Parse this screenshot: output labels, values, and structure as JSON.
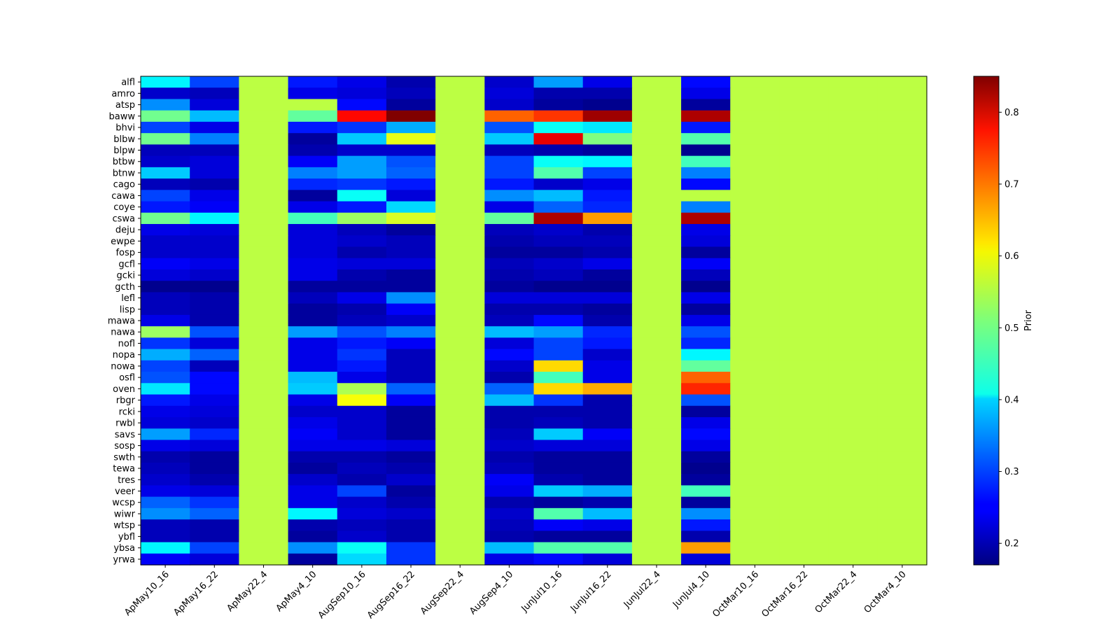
{
  "chart_data": {
    "type": "heatmap",
    "title": "",
    "xlabel": "",
    "ylabel": "",
    "colormap": "jet",
    "colorbar": {
      "label": "Prior",
      "vmin": 0.17,
      "vmax": 0.85,
      "ticks": [
        0.2,
        0.3,
        0.4,
        0.5,
        0.6,
        0.7,
        0.8
      ],
      "tick_labels": [
        "0.2",
        "0.3",
        "0.4",
        "0.5",
        "0.6",
        "0.7",
        "0.8"
      ]
    },
    "x_categories": [
      "ApMay10_16",
      "ApMay16_22",
      "ApMay22_4",
      "ApMay4_10",
      "AugSep10_16",
      "AugSep16_22",
      "AugSep22_4",
      "AugSep4_10",
      "JunJul10_16",
      "JunJul16_22",
      "JunJul22_4",
      "JunJul4_10",
      "OctMar10_16",
      "OctMar16_22",
      "OctMar22_4",
      "OctMar4_10"
    ],
    "y_categories": [
      "alfl",
      "amro",
      "atsp",
      "baww",
      "bhvi",
      "blbw",
      "blpw",
      "btbw",
      "btnw",
      "cago",
      "cawa",
      "coye",
      "cswa",
      "deju",
      "ewpe",
      "fosp",
      "gcfl",
      "gcki",
      "gcth",
      "lefl",
      "lisp",
      "mawa",
      "nawa",
      "nofl",
      "nopa",
      "nowa",
      "osfl",
      "oven",
      "rbgr",
      "rcki",
      "rwbl",
      "savs",
      "sosp",
      "swth",
      "tewa",
      "tres",
      "veer",
      "wcsp",
      "wiwr",
      "wtsp",
      "ybfl",
      "ybsa",
      "yrwa"
    ],
    "values": [
      [
        0.42,
        0.3,
        0.55,
        0.27,
        0.24,
        0.2,
        0.55,
        0.22,
        0.36,
        0.24,
        0.55,
        0.26,
        0.55,
        0.55,
        0.55,
        0.55
      ],
      [
        0.22,
        0.21,
        0.55,
        0.24,
        0.23,
        0.21,
        0.55,
        0.23,
        0.2,
        0.2,
        0.55,
        0.24,
        0.55,
        0.55,
        0.55,
        0.55
      ],
      [
        0.35,
        0.23,
        0.55,
        0.55,
        0.26,
        0.19,
        0.55,
        0.22,
        0.19,
        0.18,
        0.55,
        0.19,
        0.55,
        0.55,
        0.55,
        0.55
      ],
      [
        0.5,
        0.38,
        0.55,
        0.49,
        0.76,
        0.85,
        0.55,
        0.7,
        0.73,
        0.83,
        0.55,
        0.82,
        0.55,
        0.55,
        0.55,
        0.55
      ],
      [
        0.3,
        0.24,
        0.55,
        0.27,
        0.29,
        0.37,
        0.55,
        0.31,
        0.43,
        0.41,
        0.55,
        0.27,
        0.55,
        0.55,
        0.55,
        0.55
      ],
      [
        0.5,
        0.34,
        0.55,
        0.19,
        0.39,
        0.58,
        0.55,
        0.39,
        0.78,
        0.51,
        0.55,
        0.48,
        0.55,
        0.55,
        0.55,
        0.55
      ],
      [
        0.21,
        0.21,
        0.55,
        0.2,
        0.22,
        0.22,
        0.55,
        0.21,
        0.2,
        0.19,
        0.55,
        0.18,
        0.55,
        0.55,
        0.55,
        0.55
      ],
      [
        0.22,
        0.23,
        0.55,
        0.25,
        0.36,
        0.31,
        0.55,
        0.3,
        0.43,
        0.42,
        0.55,
        0.47,
        0.55,
        0.55,
        0.55,
        0.55
      ],
      [
        0.39,
        0.23,
        0.55,
        0.34,
        0.36,
        0.32,
        0.55,
        0.3,
        0.48,
        0.3,
        0.55,
        0.34,
        0.55,
        0.55,
        0.55,
        0.55
      ],
      [
        0.21,
        0.2,
        0.55,
        0.28,
        0.29,
        0.27,
        0.55,
        0.27,
        0.22,
        0.24,
        0.55,
        0.26,
        0.55,
        0.55,
        0.55,
        0.55
      ],
      [
        0.3,
        0.24,
        0.55,
        0.19,
        0.43,
        0.23,
        0.55,
        0.35,
        0.38,
        0.27,
        0.55,
        0.55,
        0.55,
        0.55,
        0.55,
        0.55
      ],
      [
        0.27,
        0.25,
        0.55,
        0.24,
        0.27,
        0.4,
        0.55,
        0.24,
        0.32,
        0.28,
        0.55,
        0.34,
        0.55,
        0.55,
        0.55,
        0.55
      ],
      [
        0.5,
        0.42,
        0.55,
        0.47,
        0.53,
        0.57,
        0.55,
        0.49,
        0.82,
        0.66,
        0.55,
        0.82,
        0.55,
        0.55,
        0.55,
        0.55
      ],
      [
        0.24,
        0.23,
        0.55,
        0.23,
        0.21,
        0.19,
        0.55,
        0.21,
        0.22,
        0.2,
        0.55,
        0.24,
        0.55,
        0.55,
        0.55,
        0.55
      ],
      [
        0.22,
        0.22,
        0.55,
        0.23,
        0.22,
        0.21,
        0.55,
        0.2,
        0.21,
        0.21,
        0.55,
        0.23,
        0.55,
        0.55,
        0.55,
        0.55
      ],
      [
        0.22,
        0.22,
        0.55,
        0.23,
        0.2,
        0.21,
        0.55,
        0.19,
        0.19,
        0.2,
        0.55,
        0.19,
        0.55,
        0.55,
        0.55,
        0.55
      ],
      [
        0.25,
        0.24,
        0.55,
        0.24,
        0.23,
        0.23,
        0.55,
        0.21,
        0.22,
        0.24,
        0.55,
        0.25,
        0.55,
        0.55,
        0.55,
        0.55
      ],
      [
        0.23,
        0.22,
        0.55,
        0.24,
        0.2,
        0.19,
        0.55,
        0.2,
        0.21,
        0.19,
        0.55,
        0.21,
        0.55,
        0.55,
        0.55,
        0.55
      ],
      [
        0.18,
        0.18,
        0.55,
        0.19,
        0.19,
        0.19,
        0.55,
        0.19,
        0.18,
        0.18,
        0.55,
        0.18,
        0.55,
        0.55,
        0.55,
        0.55
      ],
      [
        0.21,
        0.2,
        0.55,
        0.21,
        0.24,
        0.35,
        0.55,
        0.23,
        0.23,
        0.23,
        0.55,
        0.24,
        0.55,
        0.55,
        0.55,
        0.55
      ],
      [
        0.21,
        0.2,
        0.55,
        0.19,
        0.2,
        0.25,
        0.55,
        0.2,
        0.2,
        0.19,
        0.55,
        0.19,
        0.55,
        0.55,
        0.55,
        0.55
      ],
      [
        0.24,
        0.2,
        0.55,
        0.19,
        0.21,
        0.22,
        0.55,
        0.21,
        0.26,
        0.2,
        0.55,
        0.24,
        0.55,
        0.55,
        0.55,
        0.55
      ],
      [
        0.53,
        0.31,
        0.55,
        0.36,
        0.31,
        0.34,
        0.55,
        0.38,
        0.36,
        0.28,
        0.55,
        0.31,
        0.55,
        0.55,
        0.55,
        0.55
      ],
      [
        0.29,
        0.23,
        0.55,
        0.24,
        0.27,
        0.25,
        0.55,
        0.23,
        0.3,
        0.27,
        0.55,
        0.28,
        0.55,
        0.55,
        0.55,
        0.55
      ],
      [
        0.37,
        0.32,
        0.55,
        0.24,
        0.29,
        0.21,
        0.55,
        0.26,
        0.3,
        0.22,
        0.55,
        0.42,
        0.55,
        0.55,
        0.55,
        0.55
      ],
      [
        0.3,
        0.21,
        0.55,
        0.24,
        0.27,
        0.21,
        0.55,
        0.22,
        0.62,
        0.24,
        0.55,
        0.49,
        0.55,
        0.55,
        0.55,
        0.55
      ],
      [
        0.31,
        0.26,
        0.55,
        0.38,
        0.24,
        0.21,
        0.55,
        0.2,
        0.47,
        0.24,
        0.55,
        0.7,
        0.55,
        0.55,
        0.55,
        0.55
      ],
      [
        0.41,
        0.26,
        0.55,
        0.39,
        0.54,
        0.32,
        0.55,
        0.32,
        0.62,
        0.65,
        0.55,
        0.74,
        0.55,
        0.55,
        0.55,
        0.55
      ],
      [
        0.27,
        0.24,
        0.55,
        0.24,
        0.59,
        0.25,
        0.55,
        0.38,
        0.29,
        0.2,
        0.55,
        0.31,
        0.55,
        0.55,
        0.55,
        0.55
      ],
      [
        0.24,
        0.23,
        0.55,
        0.22,
        0.22,
        0.19,
        0.55,
        0.2,
        0.2,
        0.2,
        0.55,
        0.19,
        0.55,
        0.55,
        0.55,
        0.55
      ],
      [
        0.23,
        0.22,
        0.55,
        0.24,
        0.22,
        0.19,
        0.55,
        0.2,
        0.21,
        0.2,
        0.55,
        0.24,
        0.55,
        0.55,
        0.55,
        0.55
      ],
      [
        0.36,
        0.28,
        0.55,
        0.25,
        0.22,
        0.19,
        0.55,
        0.21,
        0.39,
        0.25,
        0.55,
        0.26,
        0.55,
        0.55,
        0.55,
        0.55
      ],
      [
        0.24,
        0.23,
        0.55,
        0.24,
        0.24,
        0.23,
        0.55,
        0.22,
        0.23,
        0.23,
        0.55,
        0.24,
        0.55,
        0.55,
        0.55,
        0.55
      ],
      [
        0.2,
        0.19,
        0.55,
        0.2,
        0.2,
        0.19,
        0.55,
        0.2,
        0.19,
        0.19,
        0.55,
        0.19,
        0.55,
        0.55,
        0.55,
        0.55
      ],
      [
        0.21,
        0.19,
        0.55,
        0.19,
        0.21,
        0.2,
        0.55,
        0.21,
        0.19,
        0.19,
        0.55,
        0.18,
        0.55,
        0.55,
        0.55,
        0.55
      ],
      [
        0.22,
        0.2,
        0.55,
        0.22,
        0.2,
        0.22,
        0.55,
        0.25,
        0.2,
        0.19,
        0.55,
        0.19,
        0.55,
        0.55,
        0.55,
        0.55
      ],
      [
        0.24,
        0.23,
        0.55,
        0.24,
        0.3,
        0.19,
        0.55,
        0.24,
        0.39,
        0.37,
        0.55,
        0.47,
        0.55,
        0.55,
        0.55,
        0.55
      ],
      [
        0.32,
        0.29,
        0.55,
        0.24,
        0.22,
        0.2,
        0.55,
        0.2,
        0.19,
        0.2,
        0.55,
        0.19,
        0.55,
        0.55,
        0.55,
        0.55
      ],
      [
        0.35,
        0.32,
        0.55,
        0.42,
        0.23,
        0.22,
        0.55,
        0.22,
        0.48,
        0.38,
        0.55,
        0.35,
        0.55,
        0.55,
        0.55,
        0.55
      ],
      [
        0.21,
        0.2,
        0.55,
        0.2,
        0.21,
        0.2,
        0.55,
        0.21,
        0.25,
        0.24,
        0.55,
        0.27,
        0.55,
        0.55,
        0.55,
        0.55
      ],
      [
        0.21,
        0.2,
        0.55,
        0.19,
        0.22,
        0.2,
        0.55,
        0.2,
        0.19,
        0.19,
        0.55,
        0.2,
        0.55,
        0.55,
        0.55,
        0.55
      ],
      [
        0.42,
        0.3,
        0.55,
        0.35,
        0.43,
        0.29,
        0.55,
        0.38,
        0.48,
        0.48,
        0.55,
        0.66,
        0.55,
        0.55,
        0.55,
        0.55
      ],
      [
        0.25,
        0.23,
        0.55,
        0.19,
        0.4,
        0.29,
        0.55,
        0.24,
        0.26,
        0.23,
        0.55,
        0.23,
        0.55,
        0.55,
        0.55,
        0.55
      ]
    ]
  }
}
